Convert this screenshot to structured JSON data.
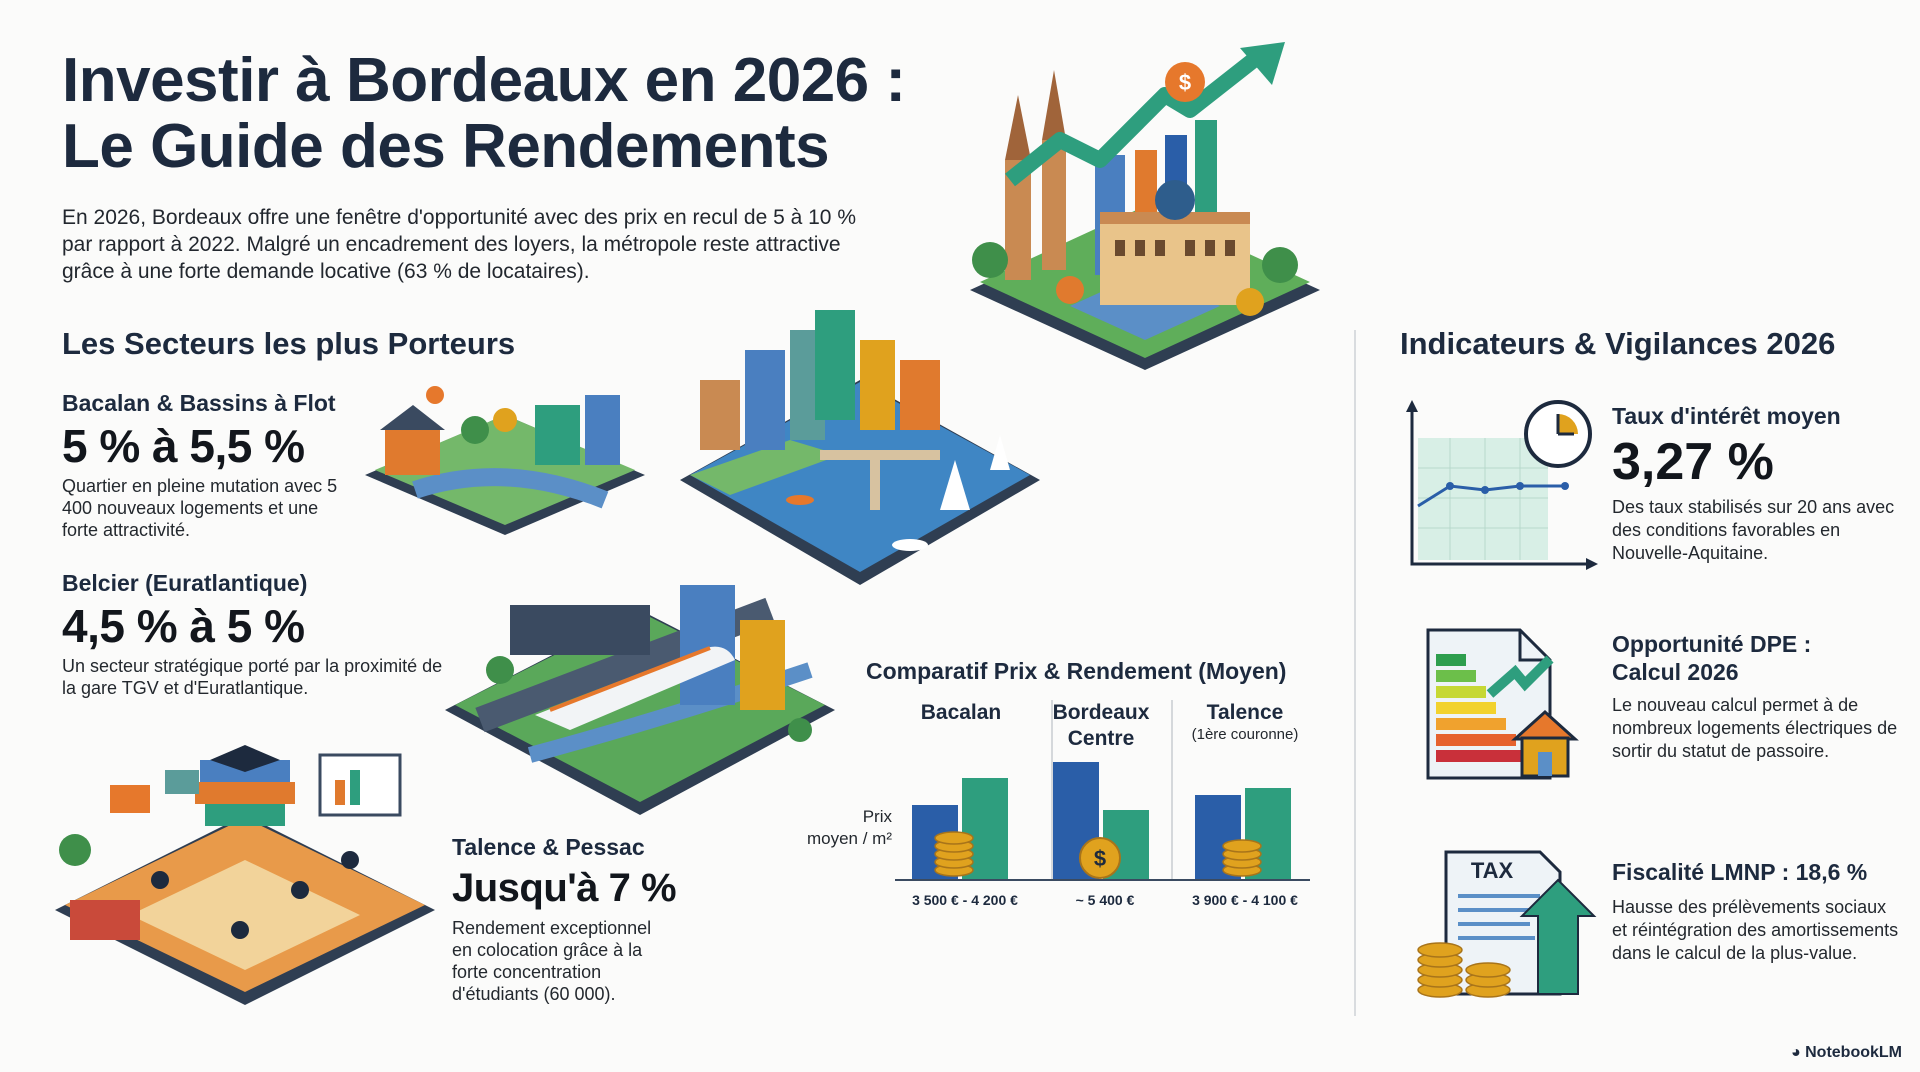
{
  "header": {
    "title_line1": "Investir à Bordeaux en 2026 :",
    "title_line2": "Le Guide des Rendements",
    "intro": "En 2026, Bordeaux offre une fenêtre d'opportunité avec des prix en recul de 5 à 10 % par rapport à 2022. Malgré un encadrement des loyers, la métropole reste attractive grâce à une forte demande locative (63 % de locataires)."
  },
  "sectors": {
    "heading": "Les Secteurs les plus Porteurs",
    "items": [
      {
        "name": "Bacalan & Bassins à Flot",
        "rate": "5 % à 5,5 %",
        "desc": "Quartier en pleine mutation avec 5 400 nouveaux logements et une forte attractivité."
      },
      {
        "name": "Belcier (Euratlantique)",
        "rate": "4,5 % à 5 %",
        "desc": "Un secteur stratégique porté par la proximité de la gare TGV et d'Euratlantique."
      },
      {
        "name": "Talence & Pessac",
        "rate": "Jusqu'à 7 %",
        "desc": "Rendement exceptionnel en colocation grâce à la forte concentration d'étudiants (60 000)."
      }
    ]
  },
  "comparison": {
    "title": "Comparatif Prix & Rendement (Moyen)",
    "axis_label_line1": "Prix",
    "axis_label_line2": "moyen / m²",
    "columns": [
      {
        "name_line1": "Bacalan",
        "name_line2": "",
        "sub": "",
        "price": "3 500 € - 4 200 €"
      },
      {
        "name_line1": "Bordeaux",
        "name_line2": "Centre",
        "sub": "",
        "price": "~ 5 400 €"
      },
      {
        "name_line1": "Talence",
        "name_line2": "",
        "sub": "(1ère couronne)",
        "price": "3 900 € - 4 100 €"
      }
    ]
  },
  "indicators": {
    "heading": "Indicateurs & Vigilances 2026",
    "rate": {
      "label": "Taux d'intérêt moyen",
      "value": "3,27 %",
      "desc": "Des taux stabilisés sur 20 ans avec des conditions favorables en Nouvelle-Aquitaine."
    },
    "dpe": {
      "label_line1": "Opportunité DPE :",
      "label_line2": "Calcul 2026",
      "desc": "Le nouveau calcul permet à de nombreux logements électriques de sortir du statut de passoire."
    },
    "tax": {
      "label": "Fiscalité LMNP : 18,6 %",
      "icon_text": "TAX",
      "desc": "Hausse des prélèvements sociaux et réintégration des amortissements dans le calcul de la plus-value."
    }
  },
  "footer": {
    "brand": "NotebookLM"
  },
  "colors": {
    "navy": "#1d2a3e",
    "blue": "#2a5ea8",
    "teal": "#2e9e7e",
    "gold": "#e0a21e",
    "orange": "#e6782c"
  }
}
